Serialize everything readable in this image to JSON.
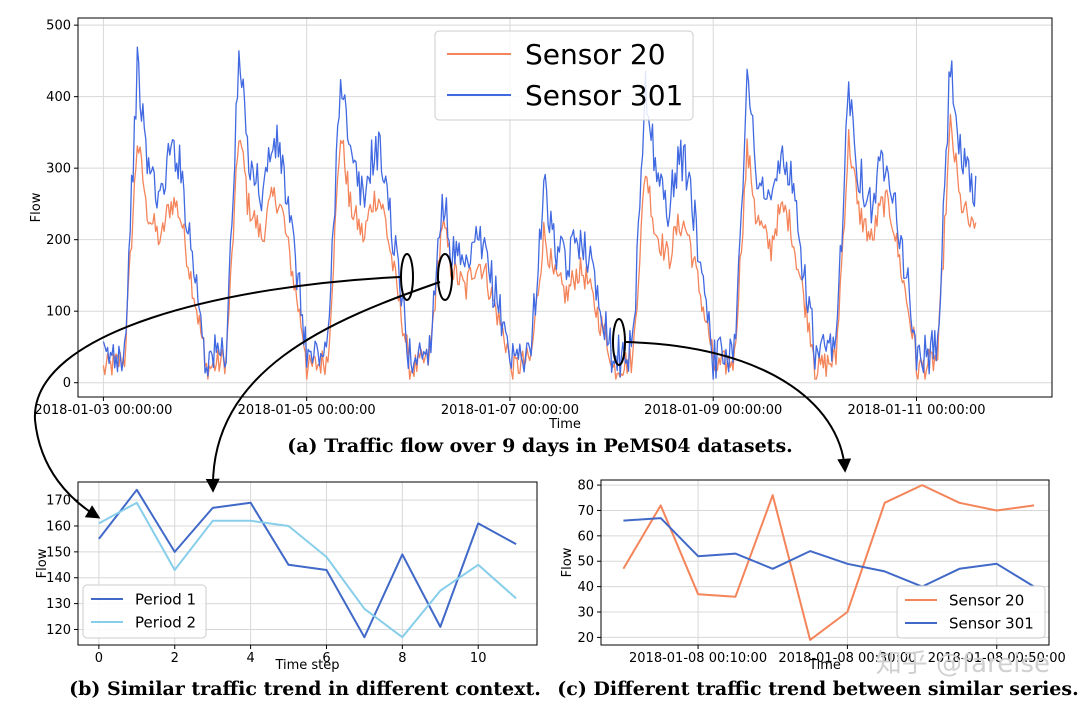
{
  "watermark": "知乎 @fareise",
  "chart_data": [
    {
      "id": "a",
      "type": "line",
      "caption": "(a) Traffic flow over 9 days in PeMS04 datasets.",
      "xlabel": "Time",
      "ylabel": "Flow",
      "ylim": [
        -20,
        510
      ],
      "xlim": [
        "2018-01-02 18:00:00",
        "2018-01-12 08:00:00"
      ],
      "yticks": [
        0,
        100,
        200,
        300,
        400,
        500
      ],
      "xticks": [
        "2018-01-03 00:00:00",
        "2018-01-05 00:00:00",
        "2018-01-07 00:00:00",
        "2018-01-09 00:00:00",
        "2018-01-11 00:00:00"
      ],
      "legend_position": "top-center",
      "grid": true,
      "series": [
        {
          "name": "Sensor 20",
          "color": "#f4845a",
          "daily_max": [
            340,
            350,
            350,
            225,
            210,
            300,
            325,
            340,
            360
          ]
        },
        {
          "name": "Sensor 301",
          "color": "#4169e1",
          "daily_max": [
            440,
            450,
            440,
            260,
            275,
            420,
            420,
            420,
            450
          ]
        }
      ]
    },
    {
      "id": "b",
      "type": "line",
      "caption": "(b) Similar traffic trend in different context.",
      "xlabel": "Time step",
      "ylabel": "Flow",
      "ylim": [
        114,
        177
      ],
      "xlim": [
        -0.55,
        11.55
      ],
      "yticks": [
        120,
        130,
        140,
        150,
        160,
        170
      ],
      "xticks": [
        0,
        2,
        4,
        6,
        8,
        10
      ],
      "x": [
        0,
        1,
        2,
        3,
        4,
        5,
        6,
        7,
        8,
        9,
        10,
        11
      ],
      "legend_position": "bottom-left",
      "grid": true,
      "series": [
        {
          "name": "Period 1",
          "color": "#4169c8",
          "values": [
            155,
            174,
            150,
            167,
            169,
            145,
            143,
            117,
            149,
            121,
            161,
            153
          ]
        },
        {
          "name": "Period 2",
          "color": "#87ceeb",
          "values": [
            161,
            169,
            143,
            162,
            162,
            160,
            148,
            128,
            117,
            135,
            145,
            132
          ]
        }
      ]
    },
    {
      "id": "c",
      "type": "line",
      "caption": "(c) Different traffic trend between similar series.",
      "xlabel": "Time",
      "ylabel": "Flow",
      "ylim": [
        17,
        82
      ],
      "xlim": [
        "2018-01-07 23:57:00",
        "2018-01-08 00:57:00"
      ],
      "yticks": [
        20,
        30,
        40,
        50,
        60,
        70,
        80
      ],
      "xticks": [
        "2018-01-08 00:10:00",
        "2018-01-08 00:30:00",
        "2018-01-08 00:50:00"
      ],
      "x": [
        "2018-01-08 00:00:00",
        "2018-01-08 00:05:00",
        "2018-01-08 00:10:00",
        "2018-01-08 00:15:00",
        "2018-01-08 00:20:00",
        "2018-01-08 00:25:00",
        "2018-01-08 00:30:00",
        "2018-01-08 00:35:00",
        "2018-01-08 00:40:00",
        "2018-01-08 00:45:00",
        "2018-01-08 00:50:00",
        "2018-01-08 00:55:00"
      ],
      "legend_position": "bottom-right",
      "grid": true,
      "series": [
        {
          "name": "Sensor 20",
          "color": "#f4845a",
          "values": [
            47,
            72,
            37,
            36,
            76,
            19,
            30,
            73,
            80,
            73,
            70,
            72
          ]
        },
        {
          "name": "Sensor 301",
          "color": "#4169c8",
          "values": [
            66,
            67,
            52,
            53,
            47,
            54,
            49,
            46,
            40,
            47,
            49,
            40
          ]
        }
      ]
    }
  ]
}
